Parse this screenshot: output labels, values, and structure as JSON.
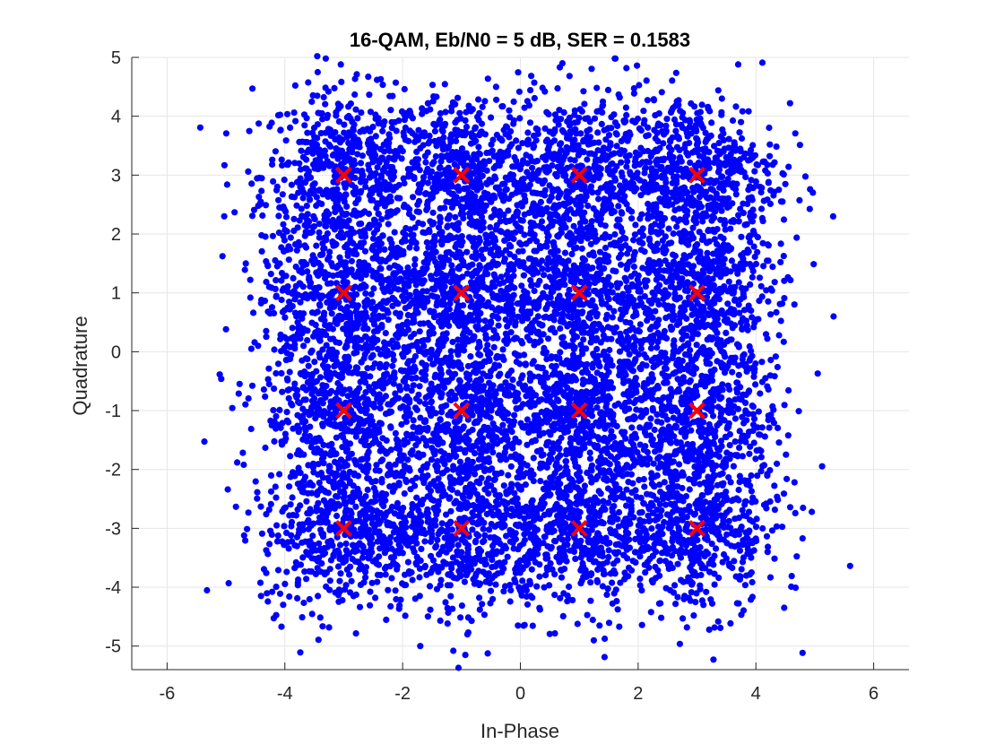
{
  "chart_data": {
    "type": "scatter",
    "title": "16-QAM, Eb/N0 = 5 dB, SER = 0.1583",
    "xlabel": "In-Phase",
    "ylabel": "Quadrature",
    "xlim": [
      -6.6,
      6.6
    ],
    "ylim": [
      -5.4,
      5.0
    ],
    "xticks": [
      -6,
      -4,
      -2,
      0,
      2,
      4,
      6
    ],
    "xtick_labels": [
      "-6",
      "-4",
      "-2",
      "0",
      "2",
      "4",
      "6"
    ],
    "yticks": [
      5,
      4,
      3,
      2,
      1,
      0,
      -1,
      -2,
      -3,
      -4,
      -5
    ],
    "ytick_labels": [
      "5",
      "4",
      "3",
      "2",
      "1",
      "0",
      "-1",
      "-2",
      "-3",
      "-4",
      "-5"
    ],
    "grid": true,
    "series": [
      {
        "description": "received noisy symbols",
        "marker": "filled-circle",
        "color": "#0000ff",
        "centers": [
          [
            -3,
            3
          ],
          [
            -1,
            3
          ],
          [
            1,
            3
          ],
          [
            3,
            3
          ],
          [
            -3,
            1
          ],
          [
            -1,
            1
          ],
          [
            1,
            1
          ],
          [
            3,
            1
          ],
          [
            -3,
            -1
          ],
          [
            -1,
            -1
          ],
          [
            1,
            -1
          ],
          [
            3,
            -1
          ],
          [
            -3,
            -3
          ],
          [
            -1,
            -3
          ],
          [
            1,
            -3
          ],
          [
            3,
            -3
          ]
        ],
        "noise_std": 0.7,
        "points_per_symbol": 560,
        "outliers": [
          [
            -3.45,
            5.02
          ],
          [
            -3.05,
            4.88
          ],
          [
            1.98,
            4.86
          ],
          [
            3.7,
            4.88
          ],
          [
            4.58,
            4.22
          ],
          [
            5.32,
            0.6
          ],
          [
            5.05,
            -0.37
          ],
          [
            -4.98,
            2.84
          ],
          [
            -5.03,
            2.3
          ],
          [
            -4.97,
            -2.34
          ],
          [
            4.95,
            -2.72
          ],
          [
            -1.7,
            -5.0
          ],
          [
            -0.9,
            -4.8
          ],
          [
            -1.05,
            -5.37
          ],
          [
            3.28,
            -5.23
          ],
          [
            1.68,
            -4.67
          ],
          [
            4.92,
            2.76
          ],
          [
            -4.08,
            -4.11
          ],
          [
            4.48,
            -4.35
          ],
          [
            -4.55,
            4.47
          ]
        ]
      },
      {
        "description": "reference constellation points",
        "marker": "x",
        "color": "#ff0000",
        "x": [
          -3,
          -1,
          1,
          3,
          -3,
          -1,
          1,
          3,
          -3,
          -1,
          1,
          3,
          -3,
          -1,
          1,
          3
        ],
        "y": [
          3,
          3,
          3,
          3,
          1,
          1,
          1,
          1,
          -1,
          -1,
          -1,
          -1,
          -3,
          -3,
          -3,
          -3
        ]
      }
    ]
  }
}
